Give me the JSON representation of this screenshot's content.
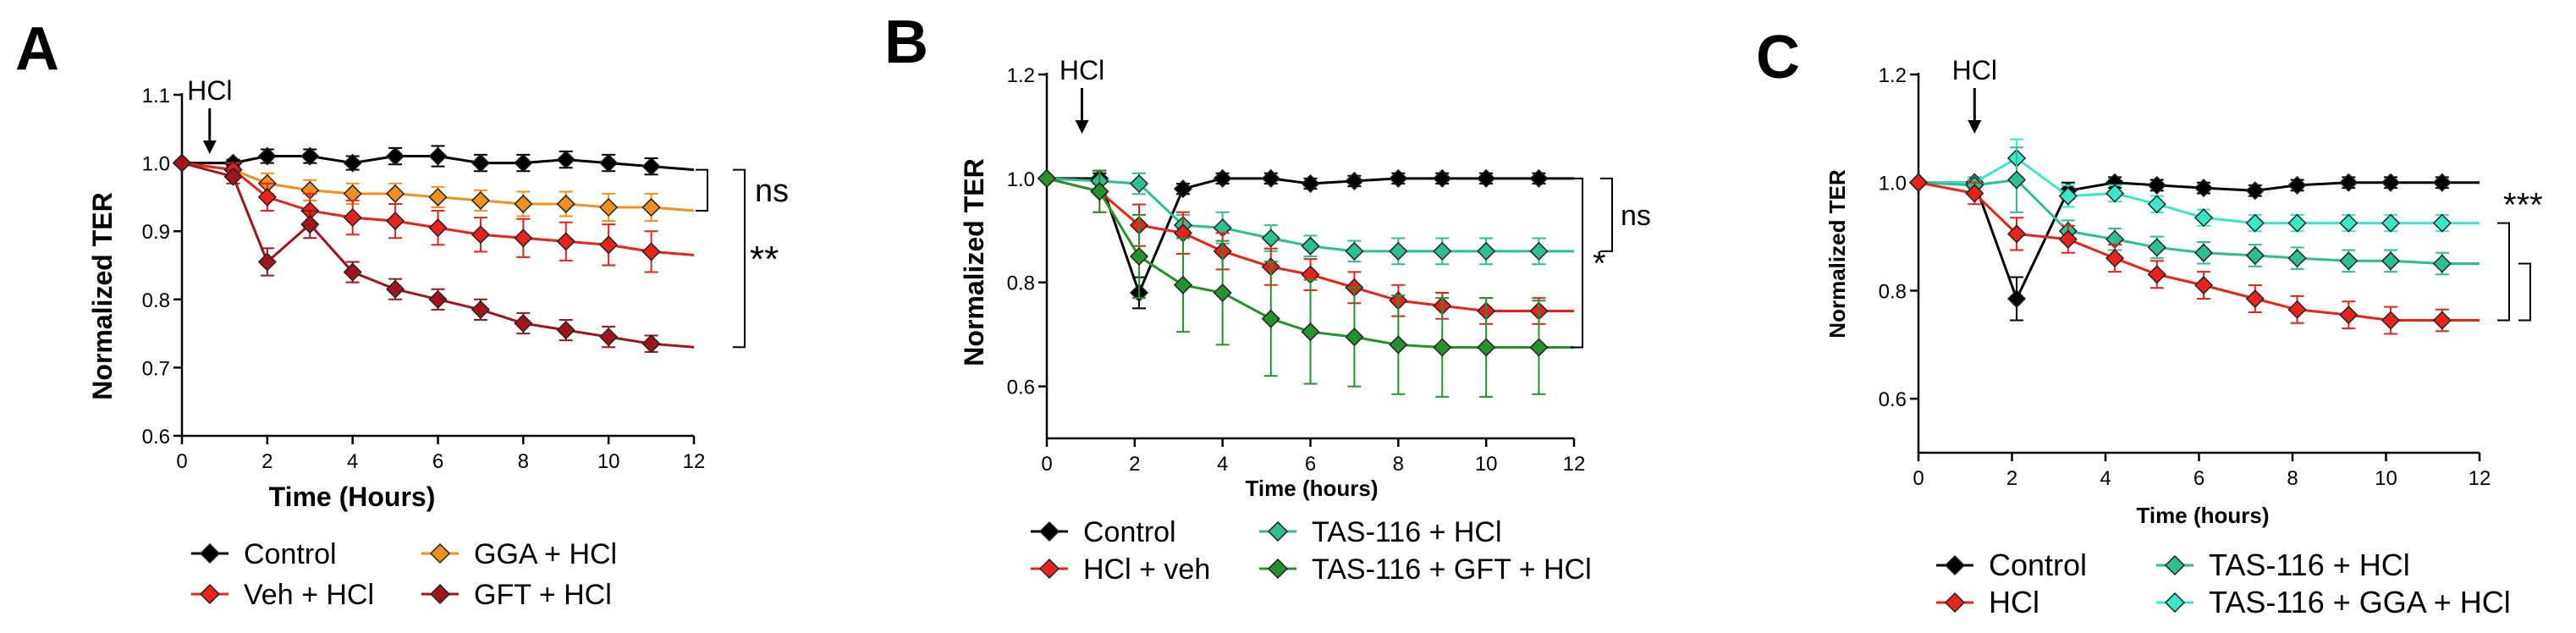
{
  "chart_data": [
    {
      "panel": "A",
      "type": "line",
      "xlabel": "Time (Hours)",
      "ylabel": "Normalized TER",
      "xlim": [
        0,
        12
      ],
      "ylim": [
        0.6,
        1.1
      ],
      "xticks": [
        0,
        2,
        4,
        6,
        8,
        10,
        12
      ],
      "yticks": [
        0.6,
        0.7,
        0.8,
        0.9,
        1.0,
        1.1
      ],
      "ytick_labels": [
        "0.6",
        "0.7",
        "0.8",
        "0.9",
        "1.0",
        "1.1"
      ],
      "arrow": {
        "label": "HCl",
        "x": 0.65
      },
      "brackets": [
        {
          "from_series": "GGA + HCl",
          "to_series": "Control",
          "label": "ns"
        },
        {
          "from_series": "GFT + HCl",
          "to_series": "Control",
          "label": "**"
        }
      ],
      "series": [
        {
          "name": "Control",
          "color": "#000000",
          "x": [
            0,
            1.2,
            2,
            3,
            4,
            5,
            6,
            7,
            8,
            9,
            10,
            11,
            12
          ],
          "y": [
            1.0,
            1.0,
            1.01,
            1.01,
            1.0,
            1.01,
            1.01,
            1.0,
            1.0,
            1.005,
            1.0,
            0.995,
            0.99
          ],
          "err": [
            0,
            0.005,
            0.01,
            0.01,
            0.01,
            0.012,
            0.015,
            0.012,
            0.012,
            0.012,
            0.012,
            0.012,
            0
          ]
        },
        {
          "name": "GGA + HCl",
          "color": "#F0901E",
          "x": [
            0,
            1.2,
            2,
            3,
            4,
            5,
            6,
            7,
            8,
            9,
            10,
            11,
            12
          ],
          "y": [
            1.0,
            0.99,
            0.97,
            0.96,
            0.955,
            0.955,
            0.95,
            0.945,
            0.94,
            0.94,
            0.935,
            0.935,
            0.93
          ],
          "err": [
            0,
            0.01,
            0.015,
            0.015,
            0.015,
            0.015,
            0.015,
            0.015,
            0.018,
            0.018,
            0.02,
            0.02,
            0
          ]
        },
        {
          "name": "Veh + HCl",
          "color": "#E8231B",
          "x": [
            0,
            1.2,
            2,
            3,
            4,
            5,
            6,
            7,
            8,
            9,
            10,
            11,
            12
          ],
          "y": [
            1.0,
            0.99,
            0.95,
            0.93,
            0.92,
            0.915,
            0.905,
            0.895,
            0.89,
            0.885,
            0.88,
            0.87,
            0.865
          ],
          "err": [
            0,
            0.01,
            0.02,
            0.025,
            0.025,
            0.025,
            0.025,
            0.025,
            0.028,
            0.028,
            0.03,
            0.03,
            0
          ]
        },
        {
          "name": "GFT + HCl",
          "color": "#A0151B",
          "x": [
            0,
            1.2,
            2,
            3,
            4,
            5,
            6,
            7,
            8,
            9,
            10,
            11,
            12
          ],
          "y": [
            1.0,
            0.98,
            0.855,
            0.91,
            0.84,
            0.815,
            0.8,
            0.785,
            0.765,
            0.755,
            0.745,
            0.735,
            0.73
          ],
          "err": [
            0,
            0.01,
            0.02,
            0.02,
            0.015,
            0.015,
            0.015,
            0.015,
            0.015,
            0.015,
            0.015,
            0.012,
            0
          ]
        }
      ],
      "legend": {
        "placement": "bottom",
        "columns": [
          [
            "Control",
            "Veh + HCl"
          ],
          [
            "GGA + HCl",
            "GFT + HCl"
          ]
        ],
        "labels": [
          "Control",
          "Veh + HCl",
          "GGA + HCl",
          "GFT + HCl"
        ]
      }
    },
    {
      "panel": "B",
      "type": "line",
      "xlabel": "Time (hours)",
      "ylabel": "Normalized TER",
      "xlim": [
        0,
        12
      ],
      "ylim": [
        0.5,
        1.2
      ],
      "xticks": [
        0,
        2,
        4,
        6,
        8,
        10,
        12
      ],
      "yticks": [
        0.6,
        0.8,
        1.0,
        1.2
      ],
      "ytick_labels": [
        "0.6",
        "0.8",
        "1.0",
        "1.2"
      ],
      "arrow": {
        "label": "HCl",
        "x": 0.8
      },
      "brackets": [
        {
          "from_series": "TAS-116 + HCl",
          "to_series": "Control",
          "label": "ns"
        },
        {
          "from_series": "TAS-116 + GFT + HCl",
          "to_series": "Control",
          "label": "*"
        }
      ],
      "series": [
        {
          "name": "Control",
          "color": "#000000",
          "x": [
            0,
            1.2,
            2.1,
            3.1,
            4,
            5.1,
            6,
            7,
            8,
            9,
            10,
            11.2,
            12
          ],
          "y": [
            1.0,
            1.0,
            0.78,
            0.98,
            1.0,
            1.0,
            0.99,
            0.995,
            1.0,
            1.0,
            1.0,
            1.0,
            1.0
          ],
          "err": [
            0,
            0.01,
            0.03,
            0.01,
            0.01,
            0.01,
            0.01,
            0.01,
            0.01,
            0.01,
            0.01,
            0.01,
            0
          ]
        },
        {
          "name": "TAS-116 + HCl",
          "color": "#2DBE92",
          "x": [
            0,
            1.2,
            2.1,
            3.1,
            4,
            5.1,
            6,
            7,
            8,
            9,
            10,
            11.2,
            12
          ],
          "y": [
            1.0,
            0.995,
            0.99,
            0.91,
            0.905,
            0.885,
            0.87,
            0.86,
            0.86,
            0.86,
            0.86,
            0.86,
            0.86
          ],
          "err": [
            0,
            0.02,
            0.02,
            0.02,
            0.03,
            0.025,
            0.02,
            0.02,
            0.025,
            0.025,
            0.025,
            0.025,
            0
          ]
        },
        {
          "name": "HCl + veh",
          "color": "#E8231B",
          "x": [
            0,
            1.2,
            2.1,
            3.1,
            4,
            5.1,
            6,
            7,
            8,
            9,
            10,
            11.2,
            12
          ],
          "y": [
            1.0,
            0.975,
            0.91,
            0.895,
            0.86,
            0.83,
            0.815,
            0.79,
            0.765,
            0.755,
            0.745,
            0.745,
            0.745
          ],
          "err": [
            0,
            0.04,
            0.04,
            0.04,
            0.035,
            0.035,
            0.03,
            0.03,
            0.03,
            0.025,
            0.025,
            0.025,
            0
          ]
        },
        {
          "name": "TAS-116 + GFT + HCl",
          "color": "#26922F",
          "x": [
            0,
            1.2,
            2.1,
            3.1,
            4,
            5.1,
            6,
            7,
            8,
            9,
            10,
            11.2,
            12
          ],
          "y": [
            1.0,
            0.975,
            0.85,
            0.795,
            0.78,
            0.73,
            0.705,
            0.695,
            0.68,
            0.675,
            0.675,
            0.675,
            0.675
          ],
          "err": [
            0,
            0.04,
            0.08,
            0.09,
            0.1,
            0.11,
            0.1,
            0.095,
            0.095,
            0.095,
            0.095,
            0.09,
            0
          ]
        }
      ],
      "legend": {
        "placement": "bottom",
        "columns": [
          [
            "Control",
            "HCl + veh"
          ],
          [
            "TAS-116 + HCl",
            "TAS-116 + GFT + HCl"
          ]
        ],
        "labels": [
          "Control",
          "HCl + veh",
          "TAS-116 + HCl",
          "TAS-116 + GFT + HCl"
        ]
      }
    },
    {
      "panel": "C",
      "type": "line",
      "xlabel": "Time (hours)",
      "ylabel": "Normalized TER",
      "xlim": [
        0,
        12
      ],
      "ylim": [
        0.5,
        1.2
      ],
      "xticks": [
        0,
        2,
        4,
        6,
        8,
        10,
        12
      ],
      "yticks": [
        0.6,
        0.8,
        1.0,
        1.2
      ],
      "ytick_labels": [
        "0.6",
        "0.8",
        "1.0",
        "1.2"
      ],
      "arrow": {
        "label": "HCl",
        "x": 1.2
      },
      "brackets": [
        {
          "from_series": "HCl",
          "to_series": "TAS-116 + GGA + HCl",
          "label": "***"
        },
        {
          "from_series": "HCl",
          "to_series": "TAS-116 + HCl",
          "label": ""
        }
      ],
      "series": [
        {
          "name": "Control",
          "color": "#000000",
          "x": [
            0,
            1.2,
            2.1,
            3.2,
            4.2,
            5.1,
            6.1,
            7.2,
            8.1,
            9.2,
            10.1,
            11.2,
            12
          ],
          "y": [
            1.0,
            1.0,
            0.785,
            0.985,
            1.0,
            0.995,
            0.99,
            0.985,
            0.995,
            1.0,
            1.0,
            1.0,
            1.0
          ],
          "err": [
            0,
            0.01,
            0.04,
            0.015,
            0.01,
            0.01,
            0.01,
            0.01,
            0.01,
            0.01,
            0.01,
            0.01,
            0
          ]
        },
        {
          "name": "TAS-116 + GGA + HCl",
          "color": "#38E8C8",
          "x": [
            0,
            1.2,
            2.1,
            3.2,
            4.2,
            5.1,
            6.1,
            7.2,
            8.1,
            9.2,
            10.1,
            11.2,
            12
          ],
          "y": [
            1.0,
            1.0,
            1.045,
            0.975,
            0.98,
            0.96,
            0.935,
            0.925,
            0.925,
            0.925,
            0.925,
            0.925,
            0.925
          ],
          "err": [
            0,
            0.01,
            0.035,
            0.02,
            0.015,
            0.015,
            0.015,
            0.015,
            0.015,
            0.015,
            0.015,
            0.015,
            0
          ]
        },
        {
          "name": "TAS-116 + HCl",
          "color": "#2DBE92",
          "x": [
            0,
            1.2,
            2.1,
            3.2,
            4.2,
            5.1,
            6.1,
            7.2,
            8.1,
            9.2,
            10.1,
            11.2,
            12
          ],
          "y": [
            1.0,
            0.995,
            1.005,
            0.91,
            0.895,
            0.88,
            0.87,
            0.865,
            0.86,
            0.855,
            0.855,
            0.85,
            0.85
          ],
          "err": [
            0,
            0.01,
            0.06,
            0.02,
            0.02,
            0.02,
            0.02,
            0.02,
            0.02,
            0.02,
            0.02,
            0.02,
            0
          ]
        },
        {
          "name": "HCl",
          "color": "#E8231B",
          "x": [
            0,
            1.2,
            2.1,
            3.2,
            4.2,
            5.1,
            6.1,
            7.2,
            8.1,
            9.2,
            10.1,
            11.2,
            12
          ],
          "y": [
            1.0,
            0.98,
            0.905,
            0.895,
            0.86,
            0.83,
            0.81,
            0.785,
            0.765,
            0.755,
            0.745,
            0.745,
            0.745
          ],
          "err": [
            0,
            0.02,
            0.03,
            0.025,
            0.025,
            0.025,
            0.025,
            0.025,
            0.025,
            0.025,
            0.025,
            0.02,
            0
          ]
        }
      ],
      "legend": {
        "placement": "bottom",
        "columns": [
          [
            "Control",
            "HCl"
          ],
          [
            "TAS-116 + HCl",
            "TAS-116 + GGA + HCl"
          ]
        ],
        "labels": [
          "Control",
          "HCl",
          "TAS-116 + HCl",
          "TAS-116 + GGA + HCl"
        ]
      }
    }
  ]
}
